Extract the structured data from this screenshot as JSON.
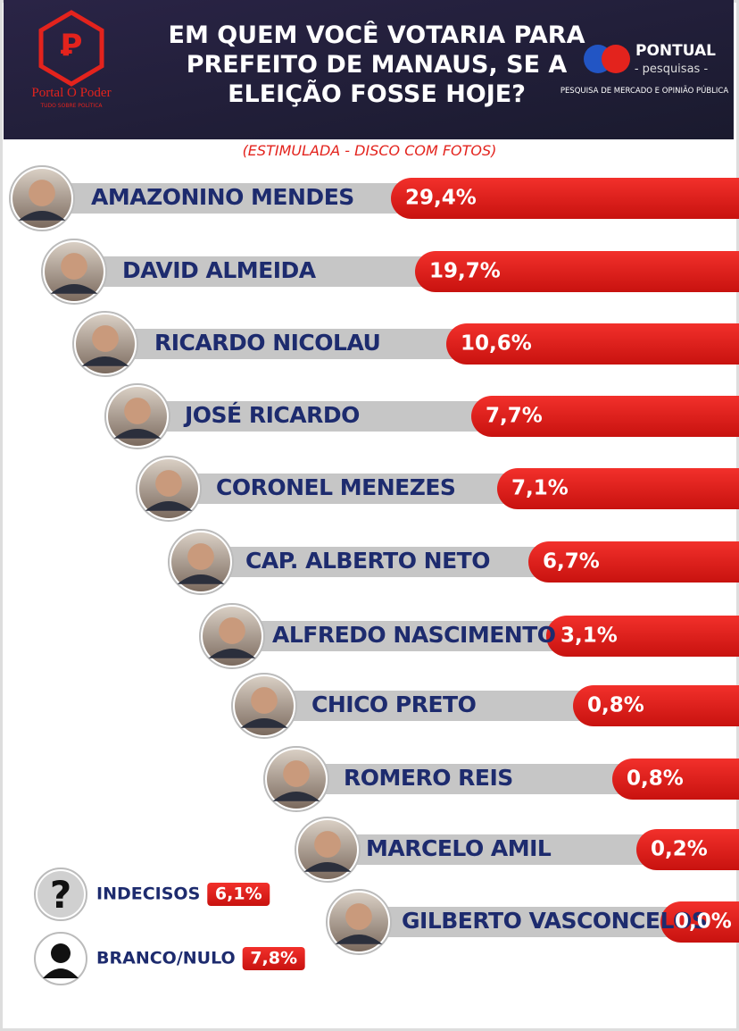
{
  "header": {
    "title_lines": [
      "EM QUEM VOCÊ VOTARIA PARA",
      "PREFEITO DE MANAUS, SE A",
      "ELEIÇÃO FOSSE HOJE?"
    ],
    "left_logo": {
      "name": "Portal O Poder",
      "tagline": "TUDO SOBRE POLÍTICA"
    },
    "right_logo": {
      "name": "PONTUAL",
      "sub": "- pesquisas -",
      "tagline": "PESQUISA DE MERCADO E OPINIÃO PÚBLICA"
    }
  },
  "subtitle": "(ESTIMULADA - DISCO COM FOTOS)",
  "candidates": [
    {
      "name": "AMAZONINO MENDES",
      "result": "29,4%"
    },
    {
      "name": "DAVID ALMEIDA",
      "result": "19,7%"
    },
    {
      "name": "RICARDO NICOLAU",
      "result": "10,6%"
    },
    {
      "name": "JOSÉ RICARDO",
      "result": "7,7%"
    },
    {
      "name": "CORONEL MENEZES",
      "result": "7,1%"
    },
    {
      "name": "CAP. ALBERTO NETO",
      "result": "6,7%"
    },
    {
      "name": "ALFREDO NASCIMENTO",
      "result": "3,1%"
    },
    {
      "name": "CHICO PRETO",
      "result": "0,8%"
    },
    {
      "name": "ROMERO REIS",
      "result": "0,8%"
    },
    {
      "name": "MARCELO AMIL",
      "result": "0,2%"
    },
    {
      "name": "GILBERTO VASCONCELOS",
      "result": "0,0%"
    }
  ],
  "others": [
    {
      "name": "INDECISOS",
      "result": "6,1%"
    },
    {
      "name": "BRANCO/NULO",
      "result": "7,8%"
    }
  ]
}
